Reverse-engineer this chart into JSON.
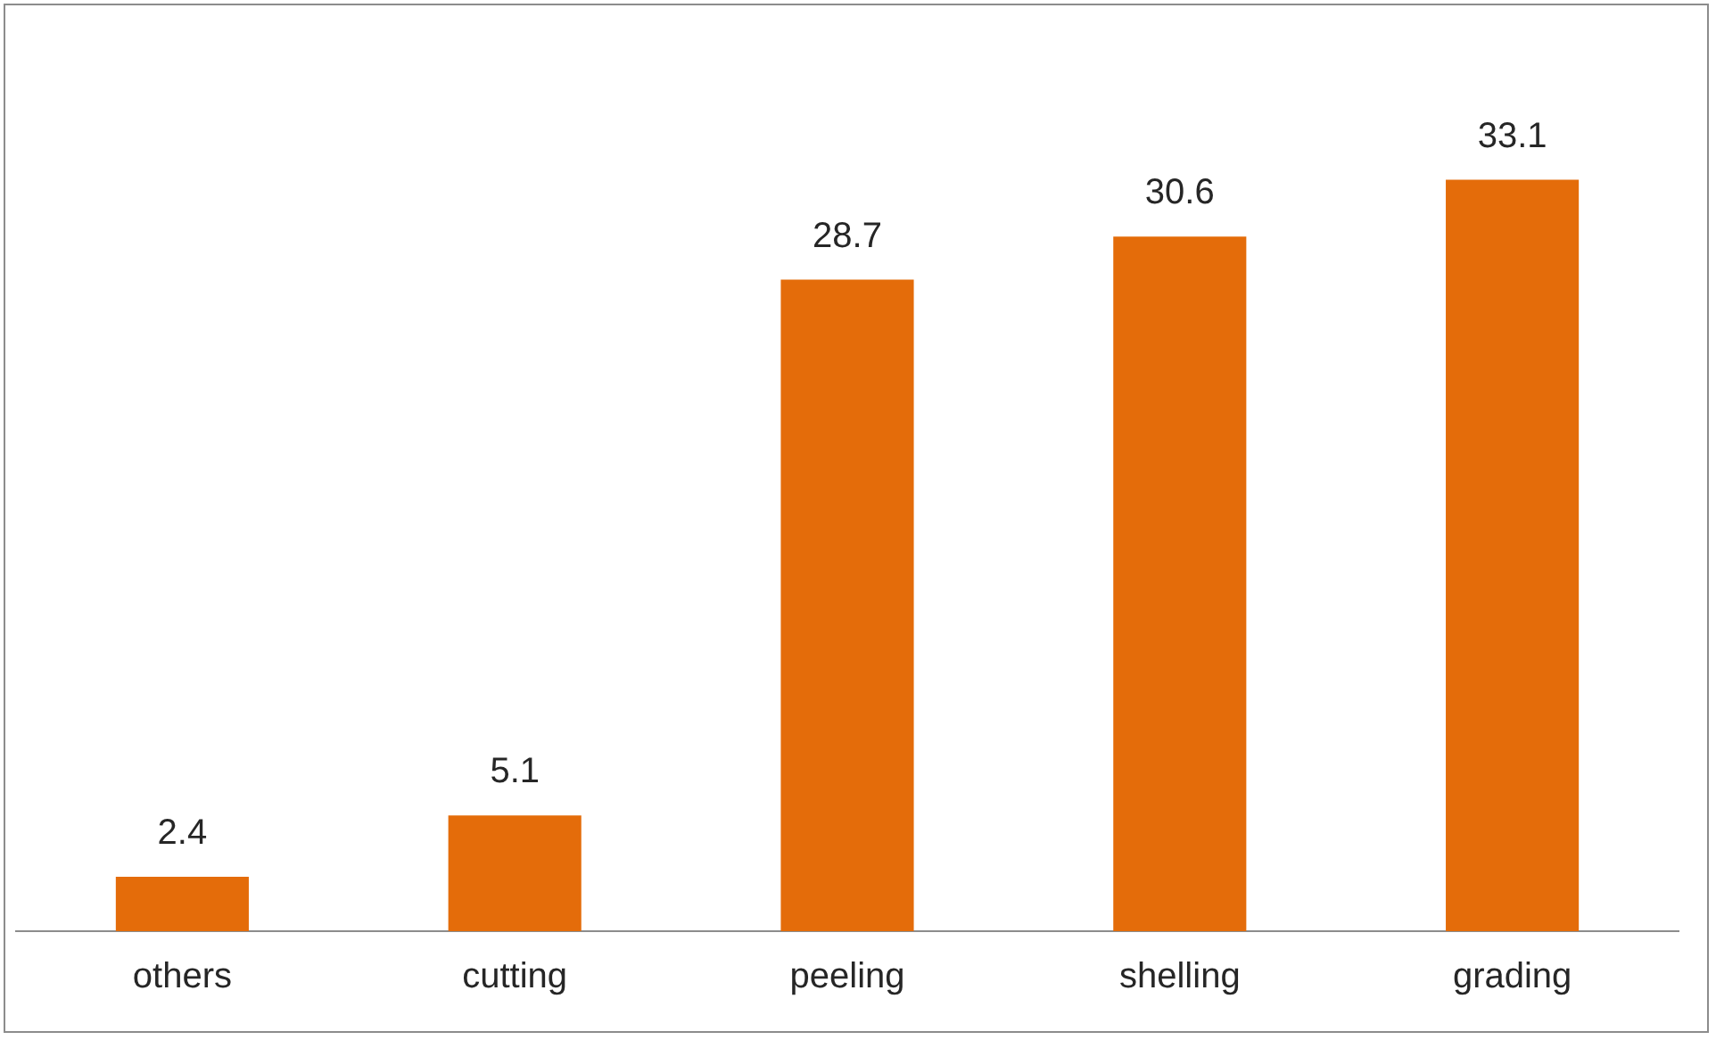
{
  "chart_data": {
    "type": "bar",
    "categories": [
      "others",
      "cutting",
      "peeling",
      "shelling",
      "grading"
    ],
    "values": [
      2.4,
      5.1,
      28.7,
      30.6,
      33.1
    ],
    "color": "#e46c0a",
    "data_labels": true,
    "grid": false,
    "legend": false
  }
}
